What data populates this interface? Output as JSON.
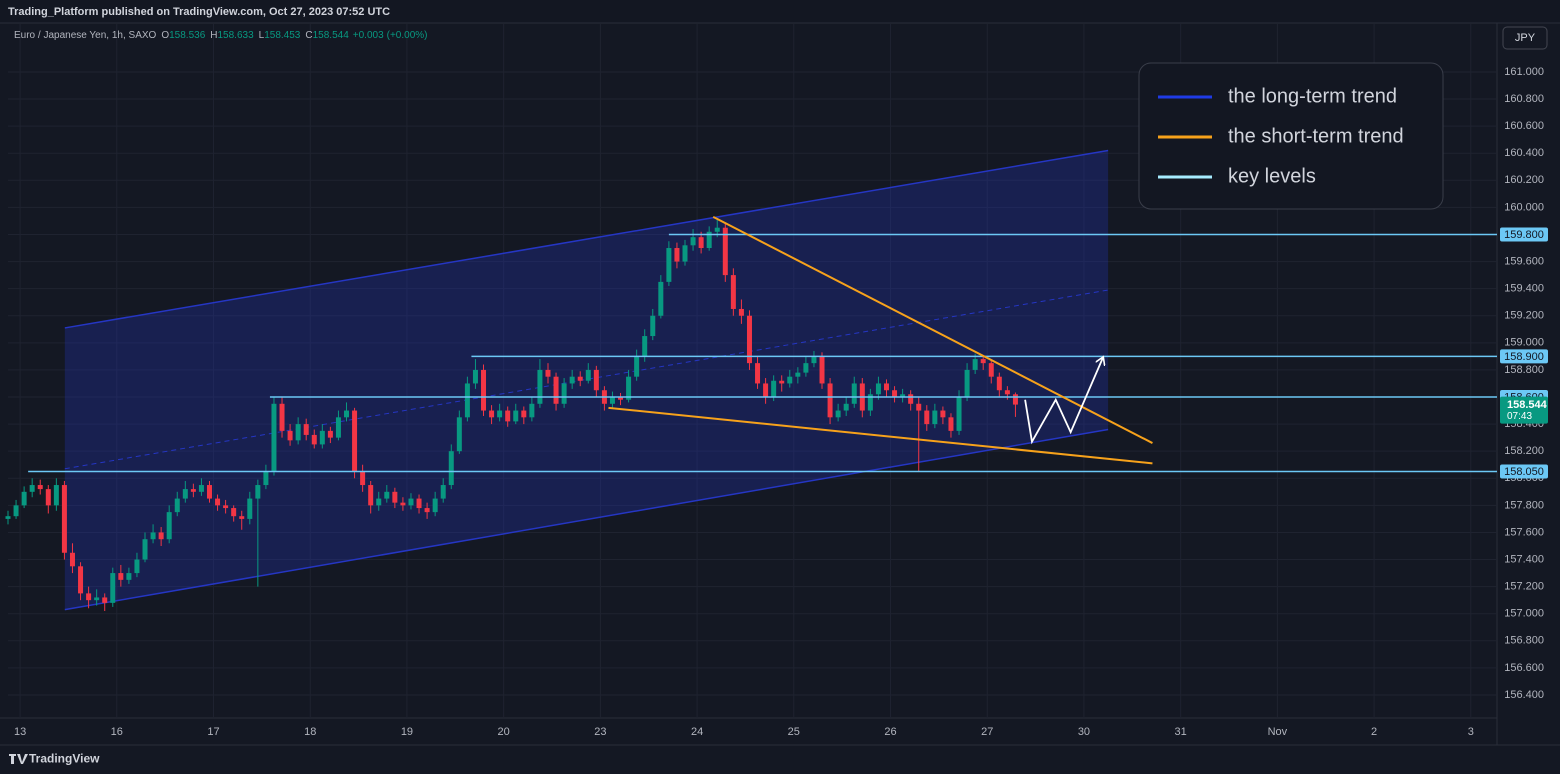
{
  "header": {
    "published": "Trading_Platform published on TradingView.com, Oct 27, 2023 07:52 UTC",
    "symbol": "Euro / Japanese Yen, 1h, SAXO",
    "ohlc": [
      {
        "label": "O",
        "value": 158.536
      },
      {
        "label": "H",
        "value": 158.633
      },
      {
        "label": "L",
        "value": 158.453
      },
      {
        "label": "C",
        "value": 158.544
      }
    ],
    "change": {
      "value": 0.003,
      "label": "+0.003"
    },
    "change_pct": {
      "value": 0,
      "label": "(+0.00%)"
    }
  },
  "currency": "JPY",
  "brand": "TradingView",
  "chart_data": {
    "type": "candlestick",
    "up_color": "#089981",
    "down_color": "#f23645",
    "x": [
      0,
      2,
      4,
      6,
      8,
      10,
      12,
      14,
      16,
      18,
      20,
      22,
      24,
      26,
      28,
      30,
      32,
      34,
      36,
      38,
      40,
      42,
      44,
      46,
      48,
      50,
      52,
      54,
      56,
      58,
      60,
      62,
      64,
      66,
      68,
      70,
      72,
      74,
      76,
      78,
      80,
      82,
      84,
      86,
      88,
      90,
      92,
      94,
      96,
      98,
      100,
      102,
      104,
      106,
      108,
      110,
      112,
      114,
      116,
      118,
      120,
      122,
      124,
      126,
      128,
      130,
      132,
      134,
      136,
      138,
      140,
      142,
      144,
      146,
      148,
      150,
      152,
      154,
      156,
      158,
      160,
      162,
      164,
      166,
      168,
      170,
      172,
      174,
      176,
      178,
      180,
      182,
      184,
      186,
      188,
      190,
      192,
      194,
      196,
      198,
      200,
      202,
      204,
      206,
      208,
      210,
      212,
      214,
      216,
      218,
      220,
      222,
      224,
      226,
      228,
      230,
      232,
      234,
      236,
      238,
      240,
      242,
      244,
      246,
      248,
      250
    ],
    "candles": [
      [
        157.7,
        157.76,
        157.66,
        157.72
      ],
      [
        157.72,
        157.84,
        157.7,
        157.8
      ],
      [
        157.8,
        157.94,
        157.78,
        157.9
      ],
      [
        157.9,
        158.0,
        157.86,
        157.95
      ],
      [
        157.95,
        157.99,
        157.88,
        157.92
      ],
      [
        157.92,
        157.95,
        157.74,
        157.8
      ],
      [
        157.8,
        158.0,
        157.76,
        157.95
      ],
      [
        157.95,
        157.98,
        157.4,
        157.45
      ],
      [
        157.45,
        157.52,
        157.3,
        157.35
      ],
      [
        157.35,
        157.38,
        157.1,
        157.15
      ],
      [
        157.15,
        157.2,
        157.04,
        157.1
      ],
      [
        157.1,
        157.18,
        157.06,
        157.12
      ],
      [
        157.12,
        157.15,
        157.02,
        157.08
      ],
      [
        157.08,
        157.34,
        157.05,
        157.3
      ],
      [
        157.3,
        157.36,
        157.2,
        157.25
      ],
      [
        157.25,
        157.34,
        157.22,
        157.3
      ],
      [
        157.3,
        157.45,
        157.27,
        157.4
      ],
      [
        157.4,
        157.6,
        157.38,
        157.55
      ],
      [
        157.55,
        157.66,
        157.52,
        157.6
      ],
      [
        157.6,
        157.64,
        157.5,
        157.55
      ],
      [
        157.55,
        157.8,
        157.52,
        157.75
      ],
      [
        157.75,
        157.9,
        157.72,
        157.85
      ],
      [
        157.85,
        157.98,
        157.82,
        157.92
      ],
      [
        157.92,
        157.96,
        157.86,
        157.9
      ],
      [
        157.9,
        158.0,
        157.87,
        157.95
      ],
      [
        157.95,
        157.98,
        157.82,
        157.85
      ],
      [
        157.85,
        157.88,
        157.76,
        157.8
      ],
      [
        157.8,
        157.84,
        157.74,
        157.78
      ],
      [
        157.78,
        157.8,
        157.68,
        157.72
      ],
      [
        157.72,
        157.76,
        157.62,
        157.7
      ],
      [
        157.7,
        157.9,
        157.66,
        157.85
      ],
      [
        157.85,
        157.99,
        157.2,
        157.95
      ],
      [
        157.95,
        158.1,
        157.92,
        158.05
      ],
      [
        158.05,
        158.6,
        158.02,
        158.55
      ],
      [
        158.55,
        158.6,
        158.3,
        158.35
      ],
      [
        158.35,
        158.4,
        158.24,
        158.28
      ],
      [
        158.28,
        158.45,
        158.25,
        158.4
      ],
      [
        158.4,
        158.44,
        158.28,
        158.32
      ],
      [
        158.32,
        158.36,
        158.22,
        158.25
      ],
      [
        158.25,
        158.4,
        158.22,
        158.35
      ],
      [
        158.35,
        158.38,
        158.26,
        158.3
      ],
      [
        158.3,
        158.5,
        158.28,
        158.45
      ],
      [
        158.45,
        158.56,
        158.42,
        158.5
      ],
      [
        158.5,
        158.52,
        158.0,
        158.05
      ],
      [
        158.05,
        158.1,
        157.9,
        157.95
      ],
      [
        157.95,
        157.98,
        157.74,
        157.8
      ],
      [
        157.8,
        157.9,
        157.76,
        157.85
      ],
      [
        157.85,
        157.95,
        157.82,
        157.9
      ],
      [
        157.9,
        157.93,
        157.78,
        157.82
      ],
      [
        157.82,
        157.86,
        157.76,
        157.8
      ],
      [
        157.8,
        157.89,
        157.77,
        157.85
      ],
      [
        157.85,
        157.88,
        157.74,
        157.78
      ],
      [
        157.78,
        157.82,
        157.7,
        157.75
      ],
      [
        157.75,
        157.9,
        157.72,
        157.85
      ],
      [
        157.85,
        158.0,
        157.82,
        157.95
      ],
      [
        157.95,
        158.25,
        157.92,
        158.2
      ],
      [
        158.2,
        158.5,
        158.18,
        158.45
      ],
      [
        158.45,
        158.75,
        158.42,
        158.7
      ],
      [
        158.7,
        158.88,
        158.66,
        158.8
      ],
      [
        158.8,
        158.84,
        158.46,
        158.5
      ],
      [
        158.5,
        158.54,
        158.4,
        158.45
      ],
      [
        158.45,
        158.55,
        158.42,
        158.5
      ],
      [
        158.5,
        158.53,
        158.38,
        158.42
      ],
      [
        158.42,
        158.55,
        158.4,
        158.5
      ],
      [
        158.5,
        158.53,
        158.4,
        158.45
      ],
      [
        158.45,
        158.6,
        158.42,
        158.55
      ],
      [
        158.55,
        158.88,
        158.52,
        158.8
      ],
      [
        158.8,
        158.85,
        158.7,
        158.75
      ],
      [
        158.75,
        158.78,
        158.5,
        158.55
      ],
      [
        158.55,
        158.74,
        158.52,
        158.7
      ],
      [
        158.7,
        158.8,
        158.66,
        158.75
      ],
      [
        158.75,
        158.79,
        158.68,
        158.72
      ],
      [
        158.72,
        158.85,
        158.7,
        158.8
      ],
      [
        158.8,
        158.83,
        158.6,
        158.65
      ],
      [
        158.65,
        158.68,
        158.5,
        158.55
      ],
      [
        158.55,
        158.64,
        158.52,
        158.6
      ],
      [
        158.6,
        158.63,
        158.54,
        158.58
      ],
      [
        158.58,
        158.8,
        158.56,
        158.75
      ],
      [
        158.75,
        158.95,
        158.72,
        158.9
      ],
      [
        158.9,
        159.1,
        158.86,
        159.05
      ],
      [
        159.05,
        159.25,
        159.02,
        159.2
      ],
      [
        159.2,
        159.5,
        159.18,
        159.45
      ],
      [
        159.45,
        159.75,
        159.42,
        159.7
      ],
      [
        159.7,
        159.74,
        159.55,
        159.6
      ],
      [
        159.6,
        159.76,
        159.57,
        159.72
      ],
      [
        159.72,
        159.84,
        159.68,
        159.78
      ],
      [
        159.78,
        159.82,
        159.66,
        159.7
      ],
      [
        159.7,
        159.86,
        159.68,
        159.82
      ],
      [
        159.82,
        159.92,
        159.78,
        159.85
      ],
      [
        159.85,
        159.88,
        159.45,
        159.5
      ],
      [
        159.5,
        159.55,
        159.2,
        159.25
      ],
      [
        159.25,
        159.32,
        159.14,
        159.2
      ],
      [
        159.2,
        159.24,
        158.8,
        158.85
      ],
      [
        158.85,
        158.9,
        158.66,
        158.7
      ],
      [
        158.7,
        158.74,
        158.55,
        158.6
      ],
      [
        158.6,
        158.76,
        158.57,
        158.72
      ],
      [
        158.72,
        158.76,
        158.64,
        158.7
      ],
      [
        158.7,
        158.8,
        158.67,
        158.75
      ],
      [
        158.75,
        158.82,
        158.7,
        158.78
      ],
      [
        158.78,
        158.9,
        158.75,
        158.85
      ],
      [
        158.85,
        158.94,
        158.82,
        158.9
      ],
      [
        158.9,
        158.93,
        158.66,
        158.7
      ],
      [
        158.7,
        158.74,
        158.4,
        158.45
      ],
      [
        158.45,
        158.55,
        158.42,
        158.5
      ],
      [
        158.5,
        158.6,
        158.46,
        158.55
      ],
      [
        158.55,
        158.75,
        158.52,
        158.7
      ],
      [
        158.7,
        158.74,
        158.45,
        158.5
      ],
      [
        158.5,
        158.66,
        158.46,
        158.62
      ],
      [
        158.62,
        158.75,
        158.58,
        158.7
      ],
      [
        158.7,
        158.73,
        158.6,
        158.65
      ],
      [
        158.65,
        158.68,
        158.56,
        158.6
      ],
      [
        158.6,
        158.66,
        158.56,
        158.62
      ],
      [
        158.62,
        158.65,
        158.5,
        158.55
      ],
      [
        158.55,
        158.6,
        158.05,
        158.5
      ],
      [
        158.5,
        158.54,
        158.35,
        158.4
      ],
      [
        158.4,
        158.55,
        158.37,
        158.5
      ],
      [
        158.5,
        158.53,
        158.4,
        158.45
      ],
      [
        158.45,
        158.48,
        158.3,
        158.35
      ],
      [
        158.35,
        158.65,
        158.32,
        158.6
      ],
      [
        158.6,
        158.85,
        158.57,
        158.8
      ],
      [
        158.8,
        158.92,
        158.77,
        158.88
      ],
      [
        158.88,
        158.91,
        158.8,
        158.85
      ],
      [
        158.85,
        158.88,
        158.7,
        158.75
      ],
      [
        158.75,
        158.78,
        158.6,
        158.65
      ],
      [
        158.65,
        158.68,
        158.58,
        158.62
      ],
      [
        158.62,
        158.633,
        158.453,
        158.544
      ]
    ],
    "xlim": [
      0,
      369.5
    ],
    "xticks": [
      {
        "value": 3,
        "label": "13"
      },
      {
        "value": 27,
        "label": "16"
      },
      {
        "value": 51,
        "label": "17"
      },
      {
        "value": 75,
        "label": "18"
      },
      {
        "value": 99,
        "label": "19"
      },
      {
        "value": 123,
        "label": "20"
      },
      {
        "value": 147,
        "label": "23"
      },
      {
        "value": 171,
        "label": "24"
      },
      {
        "value": 195,
        "label": "25"
      },
      {
        "value": 219,
        "label": "26"
      },
      {
        "value": 243,
        "label": "27"
      },
      {
        "value": 267,
        "label": "30"
      },
      {
        "value": 291,
        "label": "31"
      },
      {
        "value": 315,
        "label": "Nov"
      },
      {
        "value": 339,
        "label": "2"
      },
      {
        "value": 363,
        "label": "3"
      }
    ],
    "ylim": [
      156.23,
      161.354
    ],
    "yticks": [
      {
        "value": 156.4,
        "label": "156.400"
      },
      {
        "value": 156.6,
        "label": "156.600"
      },
      {
        "value": 156.8,
        "label": "156.800"
      },
      {
        "value": 157.0,
        "label": "157.000"
      },
      {
        "value": 157.2,
        "label": "157.200"
      },
      {
        "value": 157.4,
        "label": "157.400"
      },
      {
        "value": 157.6,
        "label": "157.600"
      },
      {
        "value": 157.8,
        "label": "157.800"
      },
      {
        "value": 158.0,
        "label": "158.000"
      },
      {
        "value": 158.2,
        "label": "158.200"
      },
      {
        "value": 158.4,
        "label": "158.400"
      },
      {
        "value": 158.6,
        "label": "158.600"
      },
      {
        "value": 158.8,
        "label": "158.800"
      },
      {
        "value": 159.0,
        "label": "159.000"
      },
      {
        "value": 159.2,
        "label": "159.200"
      },
      {
        "value": 159.4,
        "label": "159.400"
      },
      {
        "value": 159.6,
        "label": "159.600"
      },
      {
        "value": 159.8,
        "label": "159.800"
      },
      {
        "value": 160.0,
        "label": "160.000"
      },
      {
        "value": 160.2,
        "label": "160.200"
      },
      {
        "value": 160.4,
        "label": "160.400"
      },
      {
        "value": 160.6,
        "label": "160.600"
      },
      {
        "value": 160.8,
        "label": "160.800"
      },
      {
        "value": 161.0,
        "label": "161.000"
      }
    ],
    "grid": true,
    "last_price": {
      "value": 158.544,
      "countdown": "07:43",
      "color": "#089981"
    },
    "channel": {
      "color": "#2536c4",
      "upper": [
        [
          14.1,
          159.11
        ],
        [
          273,
          160.42
        ]
      ],
      "lower": [
        [
          14.1,
          157.03
        ],
        [
          273,
          158.36
        ]
      ]
    },
    "key_levels": {
      "color": "#6cc8f5",
      "levels": [
        {
          "value": 159.8,
          "label": "159.800",
          "from": 164
        },
        {
          "value": 158.9,
          "label": "158.900",
          "from": 115
        },
        {
          "value": 158.6,
          "label": "158.600",
          "from": 65
        },
        {
          "value": 158.05,
          "label": "158.050",
          "from": 5
        }
      ]
    },
    "trendlines": {
      "color": "#f7a21b",
      "lines": [
        [
          [
            175,
            159.93
          ],
          [
            284,
            158.26
          ]
        ],
        [
          [
            149,
            158.52
          ],
          [
            284,
            158.11
          ]
        ]
      ]
    },
    "projection": {
      "color": "#ffffff",
      "points": [
        [
          252.4,
          158.58
        ],
        [
          254.1,
          158.27
        ],
        [
          260,
          158.58
        ],
        [
          263.7,
          158.34
        ],
        [
          271.7,
          158.89
        ]
      ]
    },
    "legend": [
      {
        "name": "the long-term trend",
        "color": "#1f3be6"
      },
      {
        "name": "the short-term trend",
        "color": "#f7a21b"
      },
      {
        "name": "key levels",
        "color": "#a6ecff"
      }
    ]
  }
}
